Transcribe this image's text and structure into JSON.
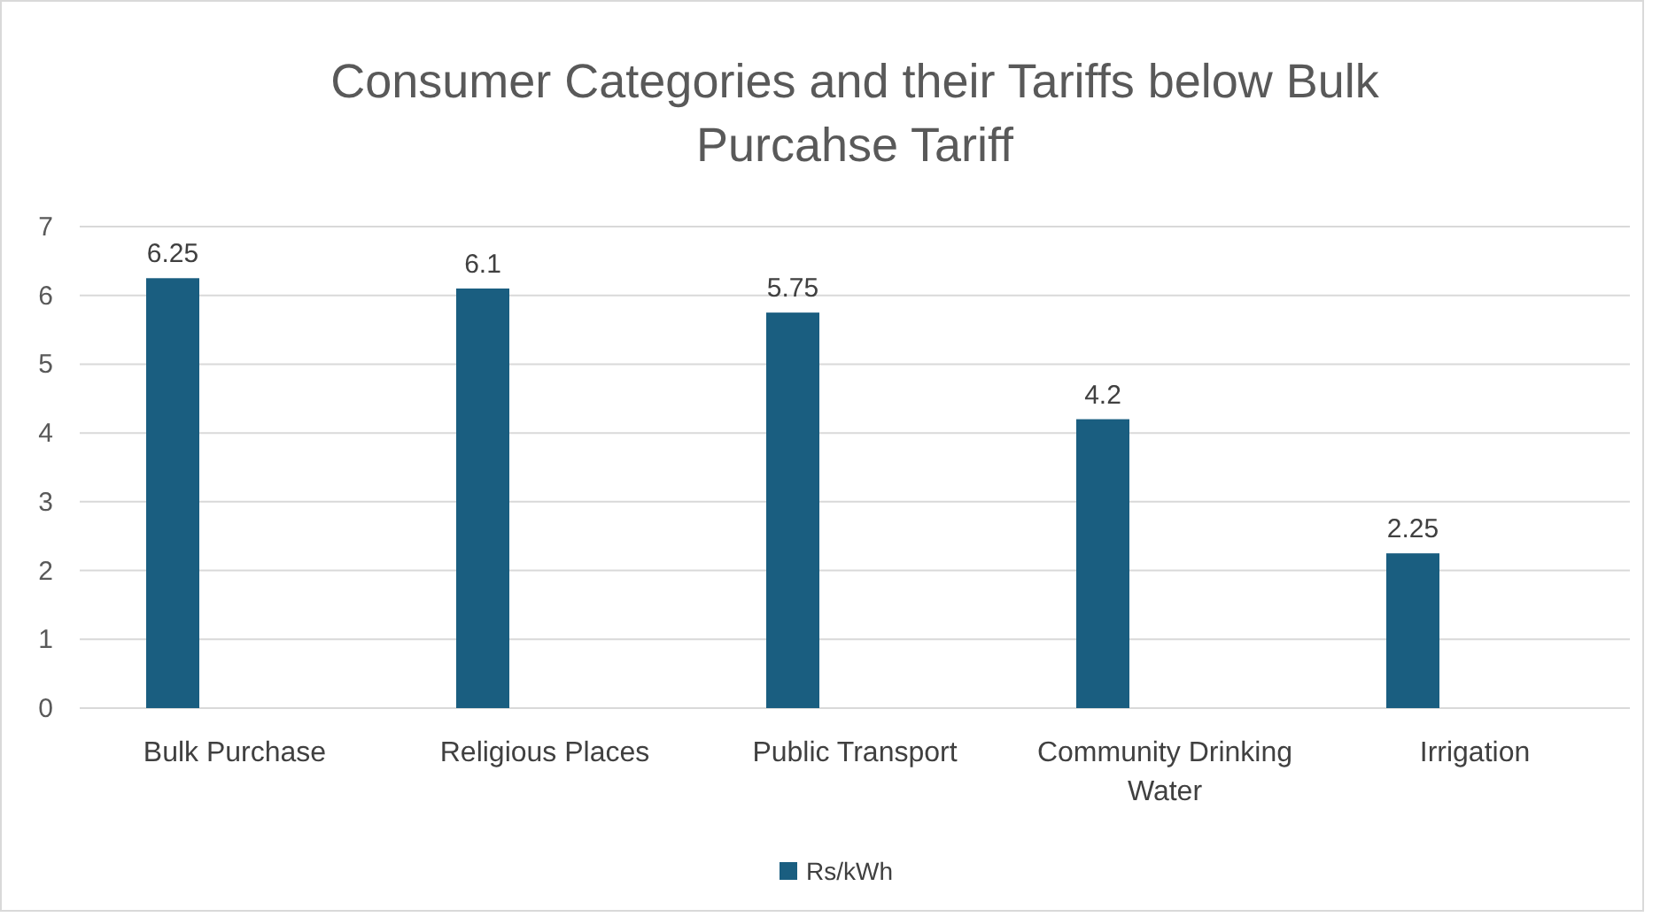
{
  "chart_data": {
    "type": "bar",
    "title": "Consumer Categories and their Tariffs below Bulk Purcahse Tariff",
    "categories": [
      "Bulk Purchase",
      "Religious Places",
      "Public Transport",
      "Community Drinking Water",
      "Irrigation"
    ],
    "series": [
      {
        "name": "Rs/kWh",
        "color": "#1a5e80",
        "values": [
          6.25,
          6.1,
          5.75,
          4.2,
          2.25
        ]
      }
    ],
    "ylim": [
      0,
      7
    ],
    "yticks": [
      0,
      1,
      2,
      3,
      4,
      5,
      6,
      7
    ],
    "grid": "y",
    "data_labels": true,
    "legend": "bottom"
  }
}
